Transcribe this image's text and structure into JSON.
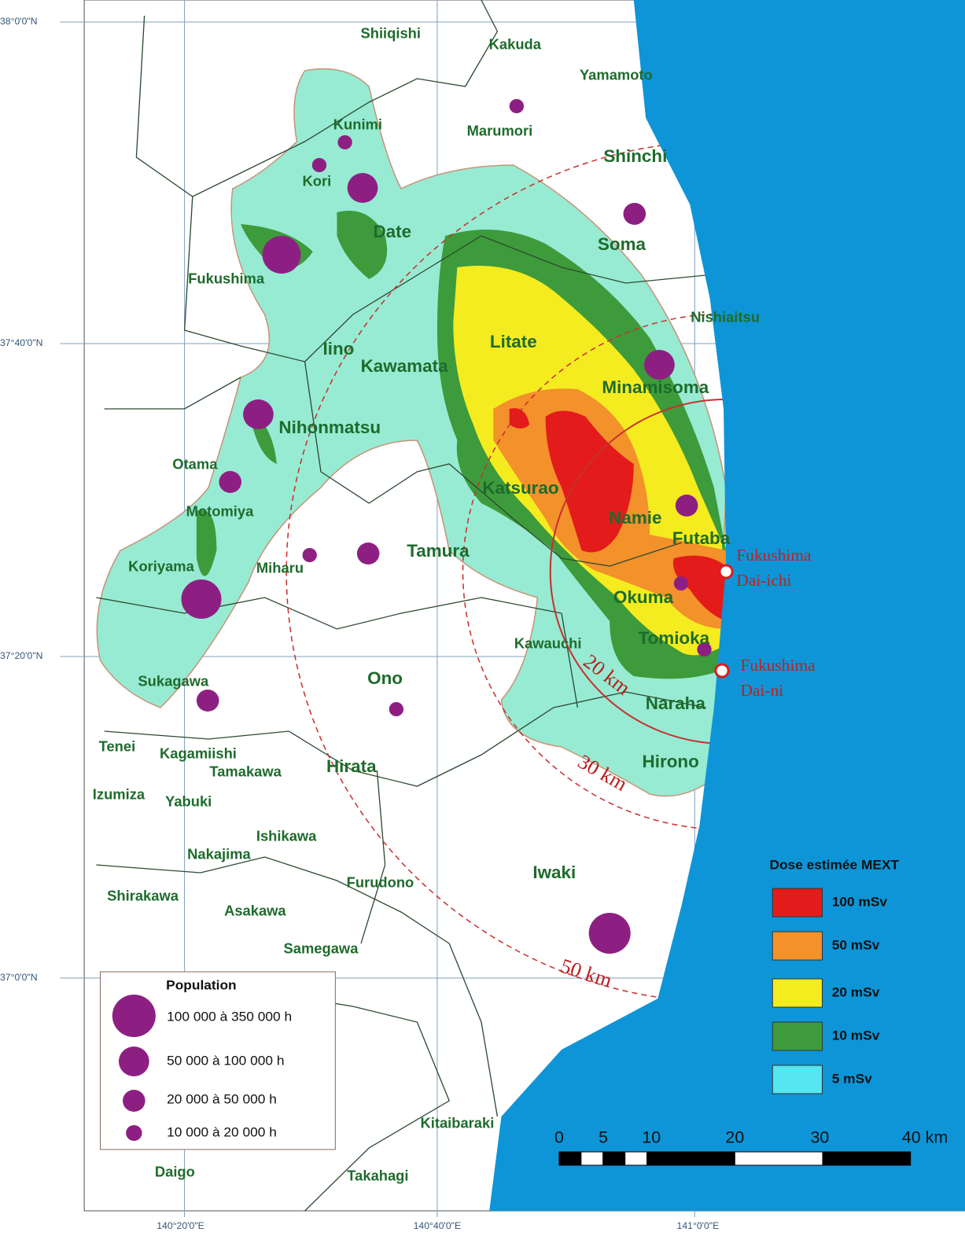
{
  "map": {
    "latitude_labels": [
      "38°0'0\"N",
      "37°40'0\"N",
      "37°20'0\"N",
      "37°0'0\"N"
    ],
    "longitude_labels": [
      "140°20'0\"E",
      "140°40'0\"E",
      "141°0'0\"E"
    ],
    "places": [
      "Shiiqishi",
      "Kakuda",
      "Yamamoto",
      "Kunimi",
      "Marumori",
      "Shinchi",
      "Kori",
      "Date",
      "Soma",
      "Fukushima",
      "Nishiaitsu",
      "Iino",
      "Litate",
      "Kawamata",
      "Minamisoma",
      "Nihonmatsu",
      "Otama",
      "Katsurao",
      "Motomiya",
      "Namie",
      "Futaba",
      "Tamura",
      "Koriyama",
      "Miharu",
      "Okuma",
      "Kawauchi",
      "Tomioka",
      "Ono",
      "Sukagawa",
      "Naraha",
      "Tenei",
      "Kagamiishi",
      "Tamakawa",
      "Hirata",
      "Hirono",
      "Izumiza",
      "Yabuki",
      "Ishikawa",
      "Nakajima",
      "Furudono",
      "Iwaki",
      "Shirakawa",
      "Asakawa",
      "Samegawa",
      "Kitaibaraki",
      "Daigo",
      "Takahagi"
    ],
    "plants": [
      [
        "Fukushima",
        "Dai-ichi"
      ],
      [
        "Fukushima",
        "Dai-ni"
      ]
    ],
    "distance_labels": [
      "20 km",
      "30 km",
      "50 km"
    ],
    "population_legend": {
      "title": "Population",
      "items": [
        "100 000 à 350 000 h",
        "50 000 à 100 000 h",
        "20 000 à 50 000 h",
        "10 000 à 20 000 h"
      ]
    },
    "dose_legend": {
      "title": "Dose estimée MEXT",
      "items": [
        {
          "label": "100 mSv",
          "color": "#e31b1b"
        },
        {
          "label": "50 mSv",
          "color": "#f3912b"
        },
        {
          "label": "20 mSv",
          "color": "#f4ec1f"
        },
        {
          "label": "10 mSv",
          "color": "#3e9b3b"
        },
        {
          "label": "5 mSv",
          "color": "#55e6f2"
        }
      ]
    },
    "scale_labels": [
      "0",
      "5",
      "10",
      "20",
      "30",
      "40 km"
    ]
  }
}
